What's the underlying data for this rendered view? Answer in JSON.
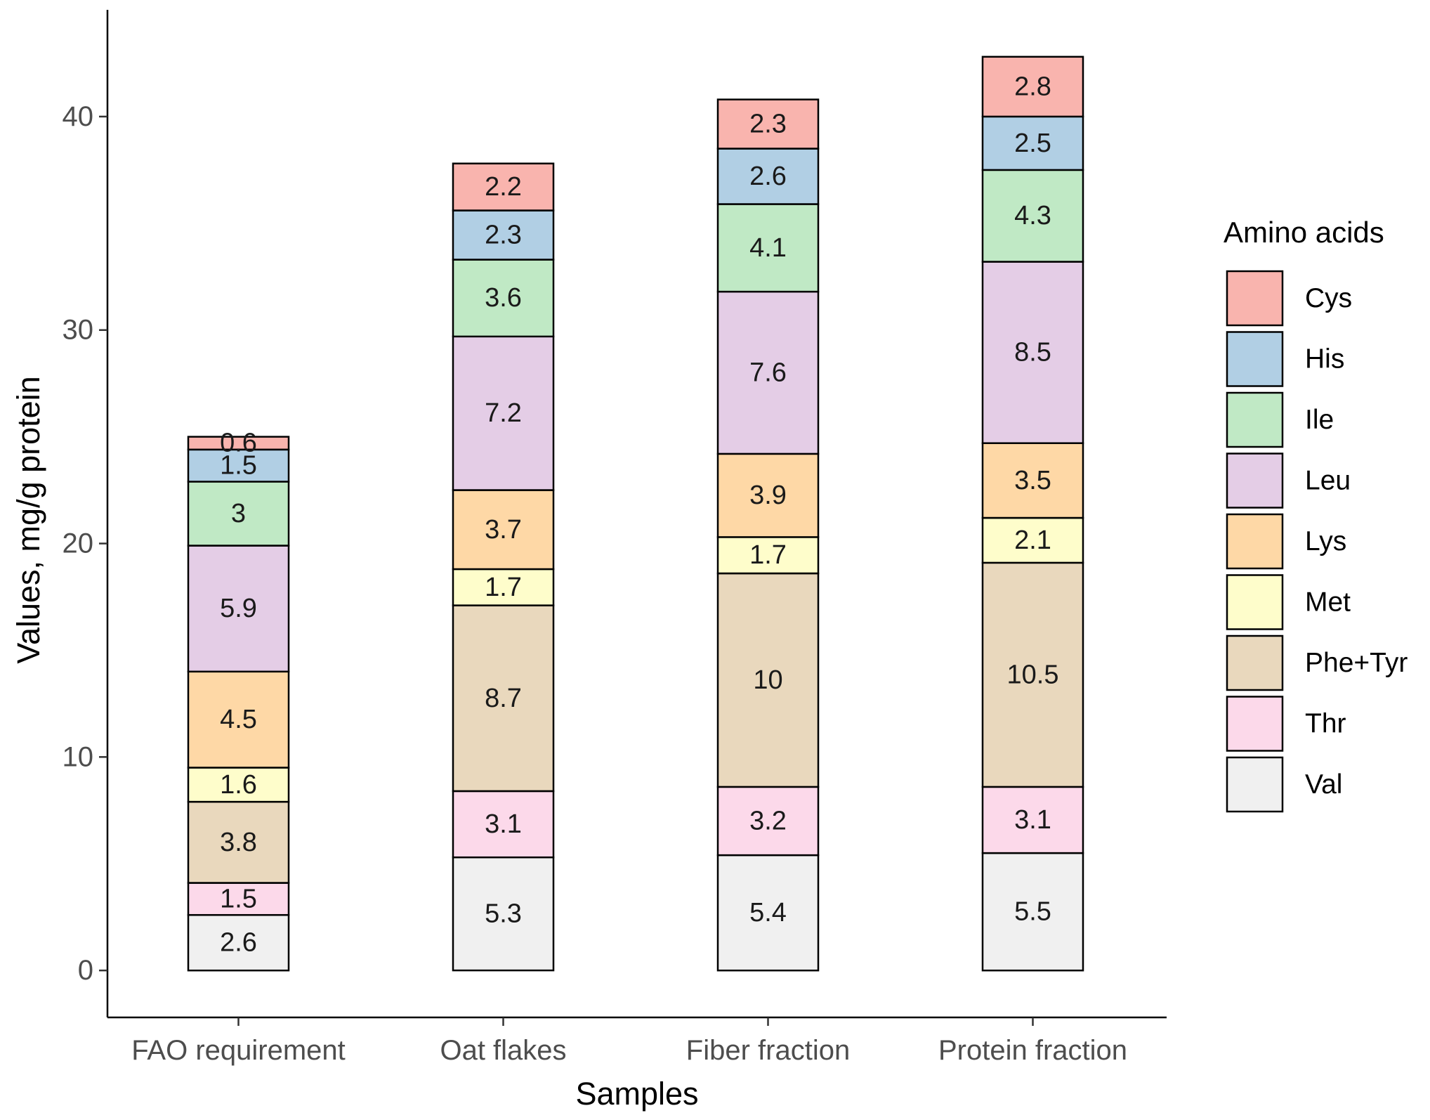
{
  "chart_data": {
    "type": "bar",
    "stacked": true,
    "title": "",
    "xlabel": "Samples",
    "ylabel": "Values, mg/g protein",
    "ylim": [
      -2.2,
      45
    ],
    "yticks": [
      0,
      10,
      20,
      30,
      40
    ],
    "categories": [
      "FAO requirement",
      "Oat flakes",
      "Fiber fraction",
      "Protein fraction"
    ],
    "legend_title": "Amino acids",
    "legend_position": "right",
    "series": [
      {
        "name": "Val",
        "color": "#f0f0f0",
        "values": [
          2.6,
          5.3,
          5.4,
          5.5
        ]
      },
      {
        "name": "Thr",
        "color": "#fcd9ea",
        "values": [
          1.5,
          3.1,
          3.2,
          3.1
        ]
      },
      {
        "name": "Phe+Tyr",
        "color": "#e9d8bd",
        "values": [
          3.8,
          8.7,
          10,
          10.5
        ]
      },
      {
        "name": "Met",
        "color": "#fefdcb",
        "values": [
          1.6,
          1.7,
          1.7,
          2.1
        ]
      },
      {
        "name": "Lys",
        "color": "#fed8a6",
        "values": [
          4.5,
          3.7,
          3.9,
          3.5
        ]
      },
      {
        "name": "Leu",
        "color": "#e4cde6",
        "values": [
          5.9,
          7.2,
          7.6,
          8.5
        ]
      },
      {
        "name": "Ile",
        "color": "#c0e9c5",
        "values": [
          3,
          3.6,
          4.1,
          4.3
        ]
      },
      {
        "name": "His",
        "color": "#b1cfe4",
        "values": [
          1.5,
          2.3,
          2.6,
          2.5
        ]
      },
      {
        "name": "Cys",
        "color": "#f9b4ae",
        "values": [
          0.6,
          2.2,
          2.3,
          2.8
        ]
      }
    ],
    "legend_order": [
      "Cys",
      "His",
      "Ile",
      "Leu",
      "Lys",
      "Met",
      "Phe+Tyr",
      "Thr",
      "Val"
    ]
  }
}
